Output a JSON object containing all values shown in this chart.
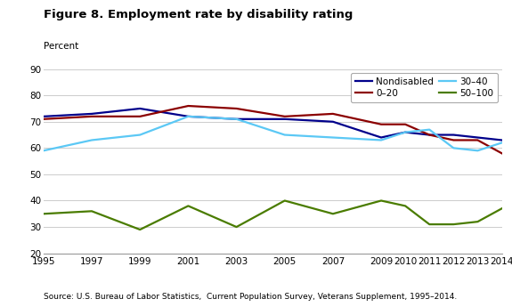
{
  "title": "Figure 8. Employment rate by disability rating",
  "ylabel": "Percent",
  "source": "Source: U.S. Bureau of Labor Statistics,  Current Population Survey, Veterans Supplement, 1995–2014.",
  "ylim": [
    20,
    90
  ],
  "yticks": [
    20,
    30,
    40,
    50,
    60,
    70,
    80,
    90
  ],
  "years": [
    1995,
    1997,
    1999,
    2001,
    2003,
    2005,
    2007,
    2009,
    2010,
    2011,
    2012,
    2013,
    2014
  ],
  "series": {
    "Nondisabled": {
      "color": "#00008B",
      "values": [
        72,
        73,
        75,
        72,
        71,
        71,
        70,
        64,
        66,
        65,
        65,
        64,
        63
      ]
    },
    "0–20": {
      "color": "#8B0000",
      "values": [
        71,
        72,
        72,
        76,
        75,
        72,
        73,
        69,
        69,
        65,
        63,
        63,
        58
      ]
    },
    "30–40": {
      "color": "#5bc8f5",
      "values": [
        59,
        63,
        65,
        72,
        71,
        65,
        64,
        63,
        66,
        67,
        60,
        59,
        62
      ]
    },
    "50–100": {
      "color": "#4a7c00",
      "values": [
        35,
        36,
        29,
        38,
        30,
        40,
        35,
        40,
        38,
        31,
        31,
        32,
        37
      ]
    }
  },
  "legend_order": [
    "Nondisabled",
    "0–20",
    "30–40",
    "50–100"
  ],
  "background_color": "#ffffff",
  "grid_color": "#cccccc",
  "xtick_labels": [
    "1995",
    "1997",
    "1999",
    "2001",
    "2003",
    "2005",
    "2007",
    "2009",
    "2010",
    "2011",
    "2012",
    "2013",
    "2014"
  ]
}
